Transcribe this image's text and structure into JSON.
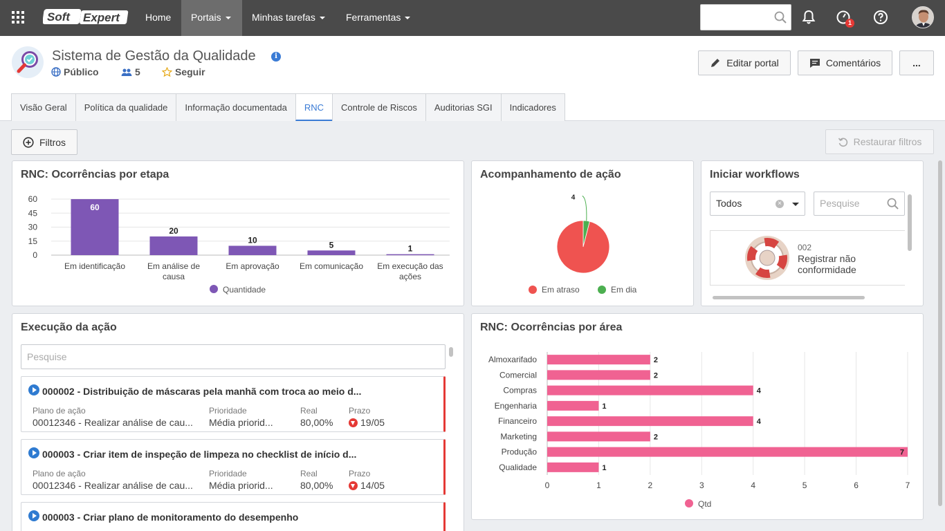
{
  "nav": {
    "logo_text": "SoftExpert",
    "items": [
      {
        "label": "Home",
        "has_caret": false
      },
      {
        "label": "Portais",
        "has_caret": true
      },
      {
        "label": "Minhas tarefas",
        "has_caret": true
      },
      {
        "label": "Ferramentas",
        "has_caret": true
      }
    ],
    "notification_badge": "1"
  },
  "header": {
    "title": "Sistema de Gestão da Qualidade",
    "visibility": "Público",
    "members": "5",
    "follow": "Seguir",
    "edit_button": "Editar portal",
    "comments_button": "Comentários",
    "more_button": "..."
  },
  "tabs": [
    "Visão Geral",
    "Política da qualidade",
    "Informação documentada",
    "RNC",
    "Controle de Riscos",
    "Auditorias SGI",
    "Indicadores"
  ],
  "active_tab": "RNC",
  "filters": {
    "filters_button": "Filtros",
    "restore_button": "Restaurar filtros"
  },
  "stage_panel": {
    "title": "RNC: Ocorrências por etapa"
  },
  "action_panel": {
    "title": "Acompanhamento de ação"
  },
  "workflow_panel": {
    "title": "Iniciar workflows",
    "select_value": "Todos",
    "search_placeholder": "Pesquise",
    "card_code": "002",
    "card_label_line1": "Registrar não",
    "card_label_line2": "conformidade"
  },
  "execution_panel": {
    "title": "Execução da ação",
    "search_placeholder": "Pesquise",
    "field_labels": {
      "plan": "Plano de ação",
      "priority": "Prioridade",
      "real": "Real",
      "deadline": "Prazo"
    },
    "tasks": [
      {
        "title": "000002 - Distribuição de máscaras pela manhã com troca ao meio d...",
        "plan": "00012346 - Realizar análise de cau...",
        "priority": "Média priorid...",
        "real": "80,00%",
        "deadline": "19/05"
      },
      {
        "title": "000003 - Criar item de inspeção de limpeza no checklist de início d...",
        "plan": "00012346 - Realizar análise de cau...",
        "priority": "Média priorid...",
        "real": "80,00%",
        "deadline": "14/05"
      },
      {
        "title": "000003 - Criar plano de monitoramento do desempenho"
      }
    ]
  },
  "area_panel": {
    "title": "RNC: Ocorrências por área"
  },
  "chart_data": [
    {
      "type": "bar",
      "title": "RNC: Ocorrências por etapa",
      "categories": [
        "Em identificação",
        "Em análise de causa",
        "Em aprovação",
        "Em comunicação",
        "Em execução das ações"
      ],
      "category_lines": [
        [
          "Em identificação"
        ],
        [
          "Em análise de",
          "causa"
        ],
        [
          "Em aprovação"
        ],
        [
          "Em comunicação"
        ],
        [
          "Em execução das",
          "ações"
        ]
      ],
      "series": [
        {
          "name": "Quantidade",
          "values": [
            60,
            20,
            10,
            5,
            1
          ],
          "color": "#7e57b5"
        }
      ],
      "ylim": [
        0,
        60
      ],
      "yticks": [
        0,
        15,
        30,
        45,
        60
      ],
      "grid": true,
      "legend": "bottom"
    },
    {
      "type": "pie",
      "title": "Acompanhamento de ação",
      "labels": [
        "Em atraso",
        "Em dia"
      ],
      "values": [
        96,
        4
      ],
      "data_labels": [
        "",
        "4"
      ],
      "colors": [
        "#ef5350",
        "#4caf50"
      ],
      "legend": "bottom"
    },
    {
      "type": "bar",
      "orientation": "horizontal",
      "title": "RNC: Ocorrências por área",
      "categories": [
        "Almoxarifado",
        "Comercial",
        "Compras",
        "Engenharia",
        "Financeiro",
        "Marketing",
        "Produção",
        "Qualidade"
      ],
      "series": [
        {
          "name": "Qtd",
          "values": [
            2,
            2,
            4,
            1,
            4,
            2,
            7,
            1
          ],
          "color": "#f06292"
        }
      ],
      "xlim": [
        0,
        7
      ],
      "xticks": [
        0,
        1,
        2,
        3,
        4,
        5,
        6,
        7
      ],
      "grid": true,
      "legend": "bottom"
    }
  ]
}
